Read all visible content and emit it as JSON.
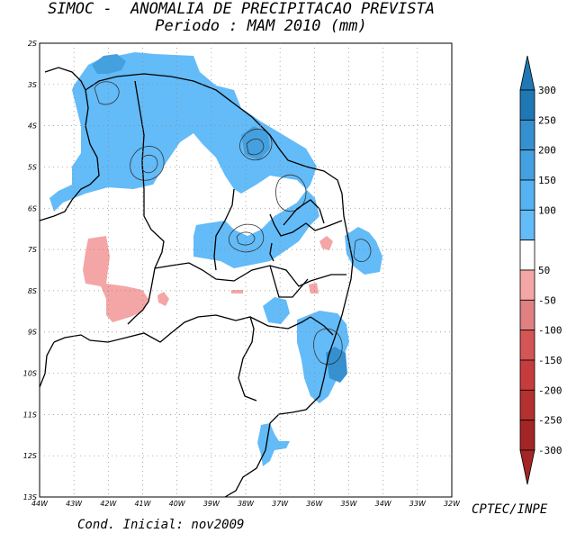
{
  "title_line1": "SIMOC -  ANOMALIA DE PRECIPITACAO PREVISTA",
  "title_line2": "Periodo : MAM 2010 (mm)",
  "credit": "CPTEC/INPE",
  "initial_condition": "Cond. Inicial: nov2009",
  "map": {
    "x_ticks": [
      "44W",
      "43W",
      "42W",
      "41W",
      "40W",
      "39W",
      "38W",
      "37W",
      "36W",
      "35W",
      "34W",
      "33W",
      "32W"
    ],
    "y_ticks": [
      "2S",
      "3S",
      "4S",
      "5S",
      "6S",
      "7S",
      "8S",
      "9S",
      "10S",
      "11S",
      "12S",
      "13S"
    ],
    "lon_range": [
      -44,
      -32
    ],
    "lat_range": [
      -13,
      -2
    ],
    "grid": "dotted"
  },
  "legend": {
    "labels": [
      "300",
      "250",
      "200",
      "150",
      "100",
      "50",
      "-50",
      "-100",
      "-150",
      "-200",
      "-250",
      "-300"
    ],
    "colors": [
      "#1f78b4",
      "#3590cf",
      "#45a0e0",
      "#56b2f2",
      "#63bbf8",
      "#ffffff",
      "#f4a6a6",
      "#e08080",
      "#d45555",
      "#c63c3c",
      "#b53030",
      "#a32525"
    ],
    "top_arrow_color": "#1f78b4",
    "bottom_arrow_color": "#a32525"
  }
}
